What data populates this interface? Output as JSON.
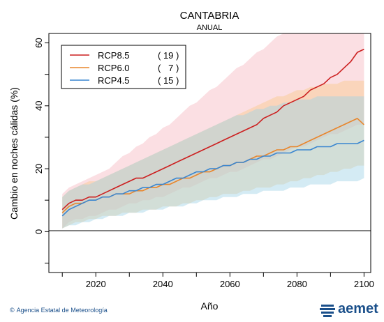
{
  "colors": {
    "rcp85": "#cc1f1f",
    "rcp60": "#e8852b",
    "rcp45": "#3a86d0",
    "rcp85_band": "#f7b8c0",
    "rcp60_band": "#f9c98a",
    "rcp45_band": "#9fd3e6",
    "brand": "#1a4f8a"
  },
  "footer": {
    "credit": "Agencia Estatal de Meteorología",
    "logo_text": "aemet"
  },
  "chart_data": {
    "type": "line",
    "title": "CANTABRIA",
    "subtitle": "ANUAL",
    "xlabel": "Año",
    "ylabel": "Cambio en noches cálidas (%)",
    "xlim": [
      2006,
      2102
    ],
    "ylim": [
      -13,
      63
    ],
    "xticks": [
      2020,
      2040,
      2060,
      2080,
      2100
    ],
    "yticks": [
      0,
      20,
      40,
      60
    ],
    "grid": false,
    "legend_position": "top-left",
    "legend": [
      {
        "name": "RCP8.5",
        "count": "( 19 )"
      },
      {
        "name": "RCP6.0",
        "count": "(   7 )"
      },
      {
        "name": "RCP4.5",
        "count": "( 15 )"
      }
    ],
    "x": [
      2010,
      2012,
      2014,
      2016,
      2018,
      2020,
      2022,
      2024,
      2026,
      2028,
      2030,
      2032,
      2034,
      2036,
      2038,
      2040,
      2042,
      2044,
      2046,
      2048,
      2050,
      2052,
      2054,
      2056,
      2058,
      2060,
      2062,
      2064,
      2066,
      2068,
      2070,
      2072,
      2074,
      2076,
      2078,
      2080,
      2082,
      2084,
      2086,
      2088,
      2090,
      2092,
      2094,
      2096,
      2098,
      2100
    ],
    "series": [
      {
        "name": "RCP8.5",
        "values": [
          7,
          9,
          10,
          10,
          11,
          11,
          12,
          13,
          14,
          15,
          16,
          17,
          17,
          18,
          19,
          20,
          21,
          22,
          23,
          24,
          25,
          26,
          27,
          28,
          29,
          30,
          31,
          32,
          33,
          34,
          36,
          37,
          38,
          40,
          41,
          42,
          43,
          45,
          46,
          47,
          49,
          50,
          52,
          54,
          57,
          58
        ],
        "lower": [
          1,
          3,
          4,
          4,
          5,
          5,
          6,
          7,
          7,
          8,
          9,
          9,
          10,
          10,
          11,
          11,
          12,
          13,
          14,
          14,
          15,
          16,
          17,
          17,
          18,
          19,
          19,
          20,
          21,
          22,
          23,
          23,
          24,
          25,
          26,
          27,
          27,
          28,
          29,
          30,
          31,
          31,
          32,
          33,
          34,
          34
        ],
        "upper": [
          12,
          14,
          15,
          16,
          17,
          18,
          19,
          20,
          22,
          24,
          25,
          27,
          28,
          30,
          31,
          33,
          34,
          36,
          38,
          40,
          41,
          43,
          45,
          46,
          48,
          50,
          52,
          53,
          55,
          57,
          58,
          60,
          62,
          63,
          63,
          63,
          63,
          63,
          63,
          63,
          63,
          63,
          63,
          63,
          63,
          63
        ]
      },
      {
        "name": "RCP6.0",
        "values": [
          6,
          8,
          9,
          9,
          10,
          10,
          11,
          11,
          12,
          12,
          12,
          13,
          13,
          14,
          14,
          15,
          15,
          16,
          17,
          17,
          18,
          19,
          19,
          20,
          21,
          21,
          22,
          22,
          23,
          24,
          24,
          25,
          26,
          26,
          27,
          27,
          28,
          29,
          30,
          31,
          32,
          33,
          34,
          35,
          36,
          34
        ],
        "lower": [
          1,
          2,
          3,
          3,
          4,
          4,
          5,
          5,
          5,
          6,
          6,
          6,
          7,
          7,
          7,
          8,
          8,
          8,
          9,
          9,
          10,
          10,
          11,
          11,
          12,
          12,
          12,
          13,
          13,
          14,
          14,
          14,
          15,
          15,
          16,
          16,
          17,
          17,
          18,
          18,
          19,
          19,
          20,
          20,
          21,
          21
        ],
        "upper": [
          11,
          13,
          14,
          15,
          16,
          16,
          17,
          18,
          19,
          20,
          21,
          22,
          23,
          24,
          25,
          26,
          27,
          28,
          29,
          30,
          31,
          32,
          33,
          34,
          35,
          36,
          37,
          38,
          39,
          40,
          41,
          42,
          43,
          43,
          44,
          45,
          45,
          46,
          46,
          47,
          47,
          47,
          48,
          48,
          48,
          48
        ]
      },
      {
        "name": "RCP4.5",
        "values": [
          5,
          7,
          8,
          9,
          10,
          10,
          11,
          11,
          12,
          12,
          13,
          13,
          14,
          14,
          15,
          15,
          16,
          17,
          17,
          18,
          19,
          19,
          20,
          20,
          21,
          21,
          22,
          22,
          23,
          23,
          24,
          24,
          25,
          25,
          25,
          26,
          26,
          26,
          27,
          27,
          27,
          28,
          28,
          28,
          28,
          29
        ],
        "lower": [
          1,
          2,
          2,
          3,
          3,
          4,
          4,
          5,
          5,
          5,
          6,
          6,
          6,
          7,
          7,
          7,
          8,
          8,
          8,
          9,
          9,
          10,
          10,
          10,
          11,
          11,
          11,
          12,
          12,
          12,
          13,
          13,
          13,
          13,
          14,
          14,
          14,
          15,
          15,
          15,
          15,
          16,
          16,
          16,
          16,
          17
        ],
        "upper": [
          11,
          13,
          14,
          15,
          15,
          16,
          17,
          18,
          19,
          20,
          21,
          22,
          23,
          24,
          25,
          26,
          27,
          28,
          29,
          30,
          31,
          32,
          33,
          34,
          35,
          36,
          37,
          37,
          38,
          39,
          39,
          40,
          40,
          41,
          41,
          42,
          42,
          42,
          43,
          43,
          43,
          43,
          43,
          43,
          43,
          43
        ]
      }
    ]
  }
}
